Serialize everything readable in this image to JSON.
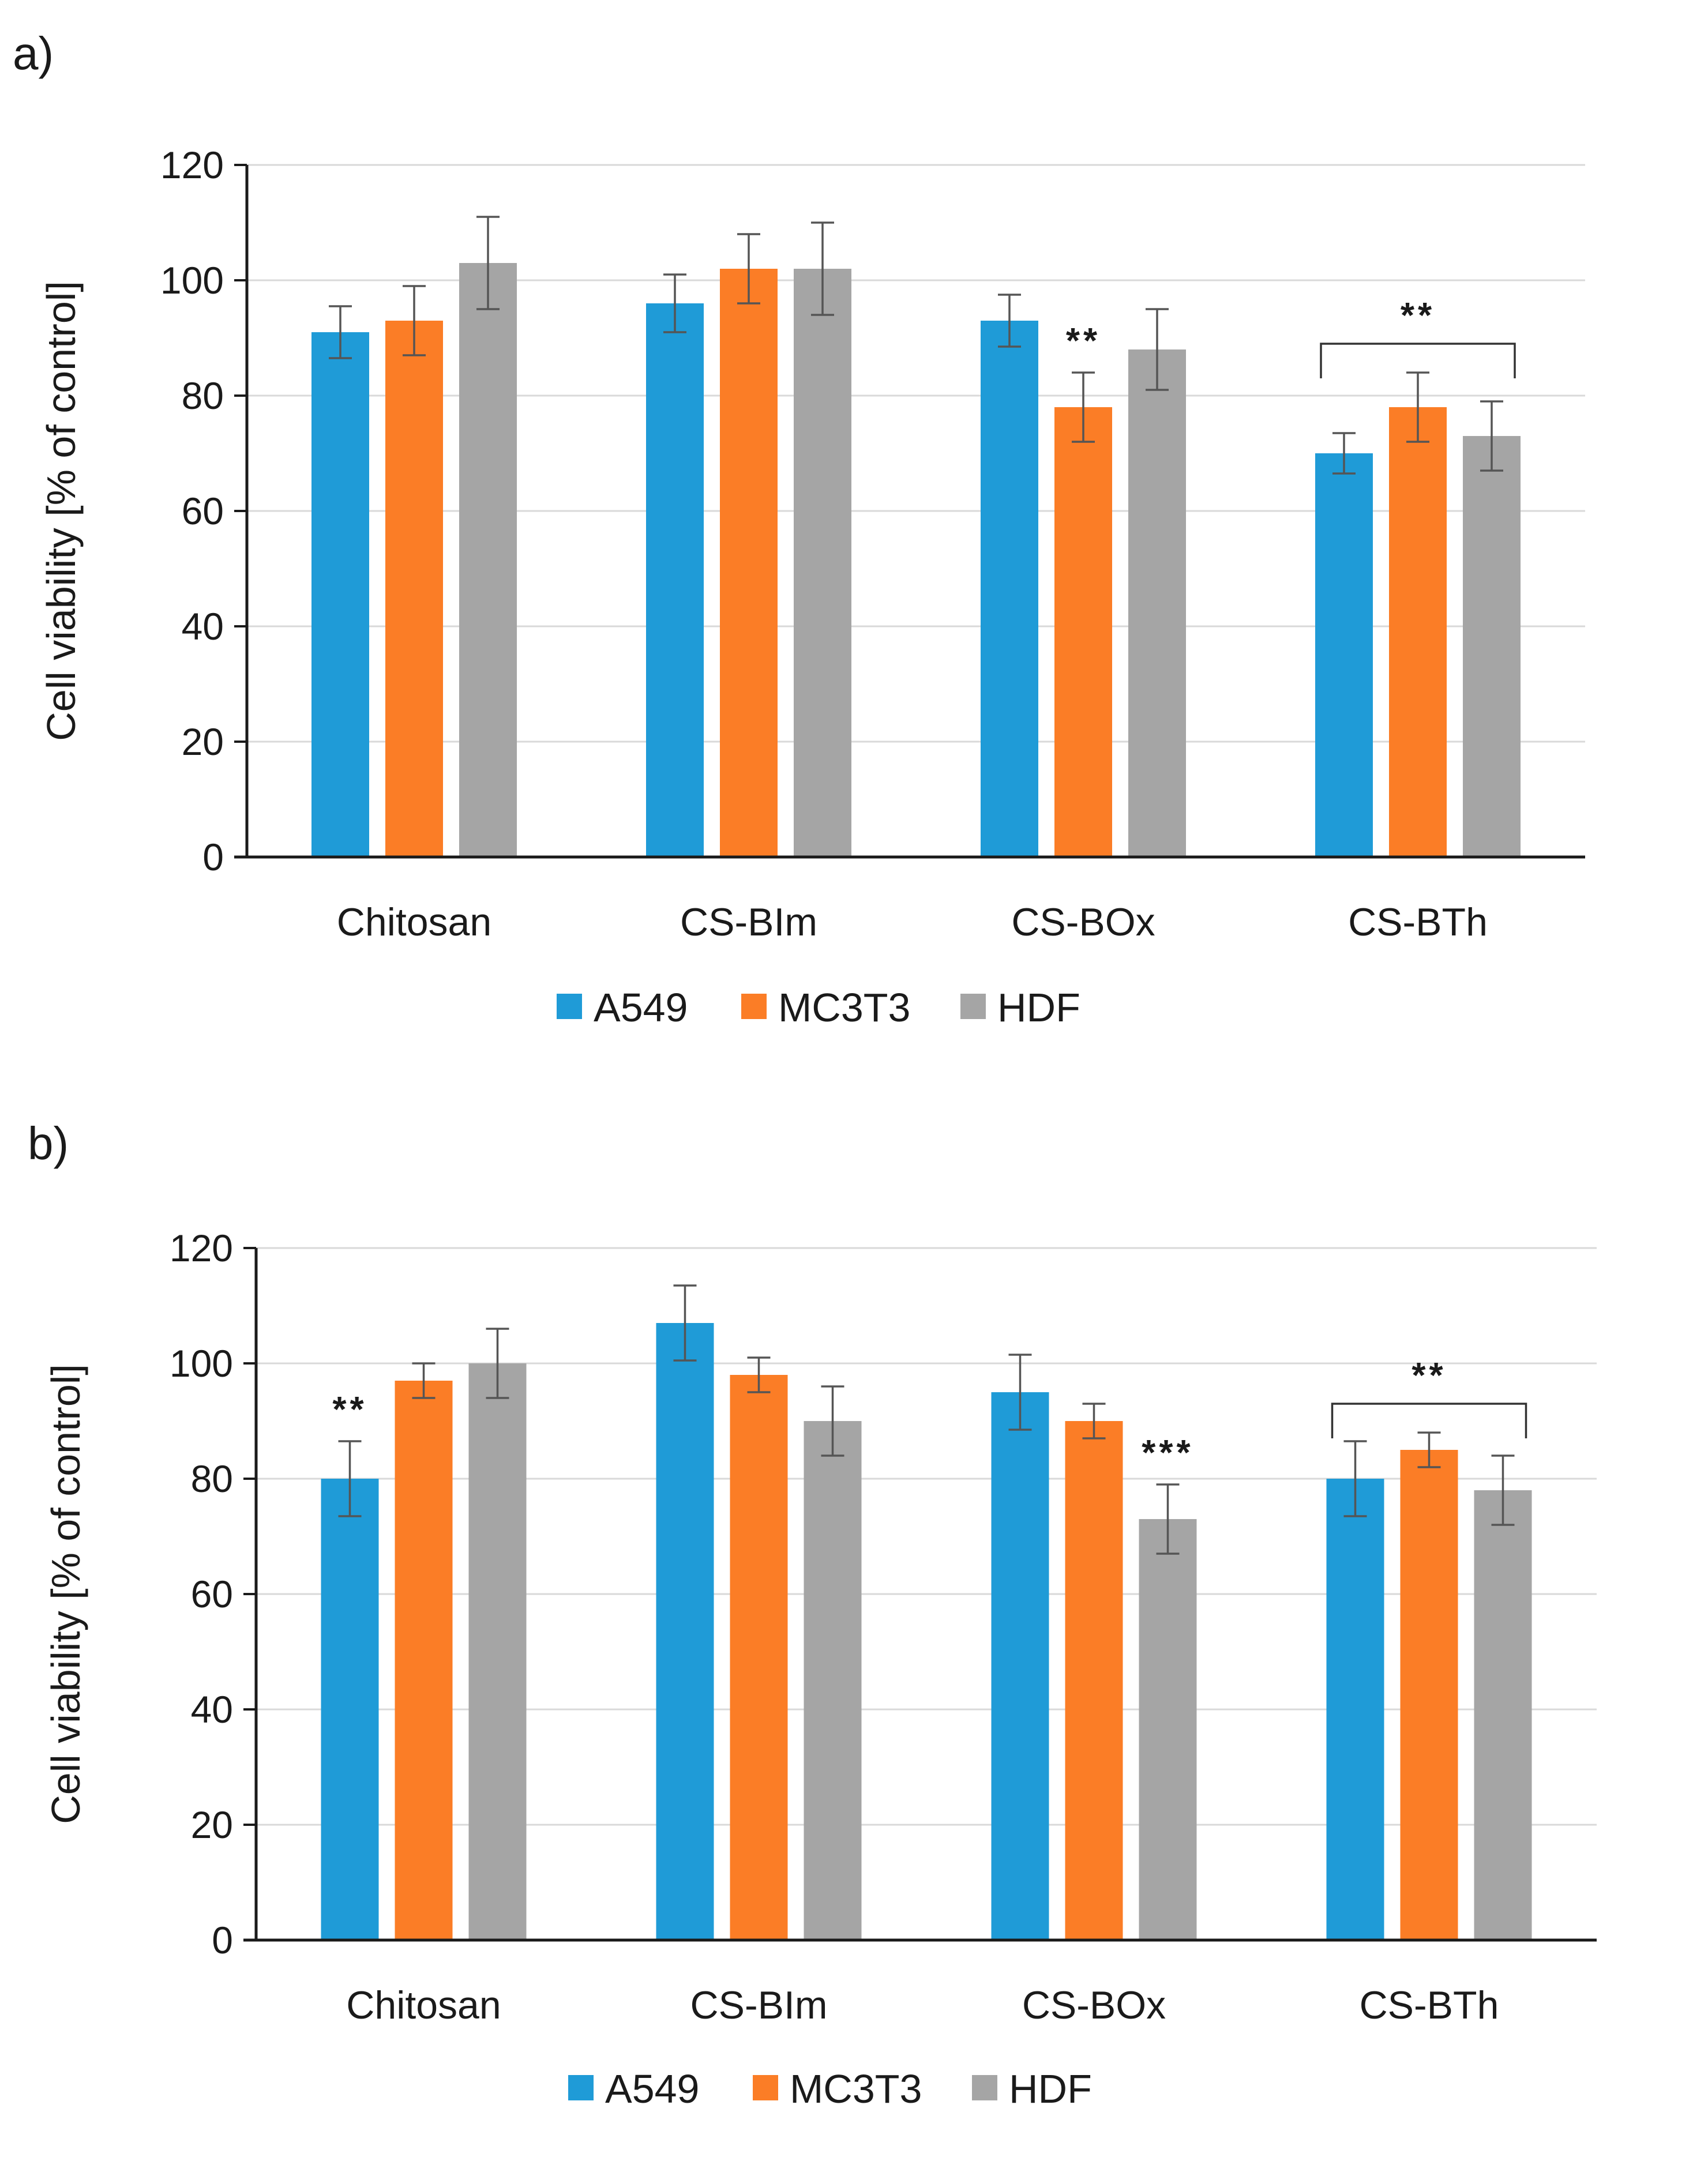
{
  "colors": {
    "A549": "#1f9bd7",
    "MC3T3": "#fb7d26",
    "HDF": "#a5a5a5",
    "axis": "#1a1a1a",
    "grid": "#d9d9d9",
    "errorbar": "#555555"
  },
  "chart_data": [
    {
      "type": "bar",
      "panel_label": "a)",
      "title": "",
      "xlabel": "",
      "ylabel": "Cell viability [% of control]",
      "ylim": [
        0,
        120
      ],
      "yticks": [
        0,
        20,
        40,
        60,
        80,
        100,
        120
      ],
      "grid": true,
      "legend_position": "bottom",
      "categories": [
        "Chitosan",
        "CS-BIm",
        "CS-BOx",
        "CS-BTh"
      ],
      "series": [
        {
          "name": "A549",
          "values": [
            91,
            96,
            93,
            70
          ],
          "errors": [
            4.5,
            5,
            4.5,
            3.5
          ]
        },
        {
          "name": "MC3T3",
          "values": [
            93,
            102,
            78,
            78
          ],
          "errors": [
            6,
            6,
            6,
            6
          ]
        },
        {
          "name": "HDF",
          "values": [
            103,
            102,
            88,
            73
          ],
          "errors": [
            8,
            8,
            7,
            6
          ]
        }
      ],
      "annotations": [
        {
          "text": "**",
          "category": 2,
          "series": 1
        },
        {
          "text": "**",
          "category": 3,
          "bracket": true
        }
      ]
    },
    {
      "type": "bar",
      "panel_label": "b)",
      "title": "",
      "xlabel": "",
      "ylabel": "Cell viability [% of control]",
      "ylim": [
        0,
        120
      ],
      "yticks": [
        0,
        20,
        40,
        60,
        80,
        100,
        120
      ],
      "grid": true,
      "legend_position": "bottom",
      "categories": [
        "Chitosan",
        "CS-BIm",
        "CS-BOx",
        "CS-BTh"
      ],
      "series": [
        {
          "name": "A549",
          "values": [
            80,
            107,
            95,
            80
          ],
          "errors": [
            6.5,
            6.5,
            6.5,
            6.5
          ]
        },
        {
          "name": "MC3T3",
          "values": [
            97,
            98,
            90,
            85
          ],
          "errors": [
            3,
            3,
            3,
            3
          ]
        },
        {
          "name": "HDF",
          "values": [
            100,
            90,
            73,
            78
          ],
          "errors": [
            6,
            6,
            6,
            6
          ]
        }
      ],
      "annotations": [
        {
          "text": "**",
          "category": 0,
          "series": 0
        },
        {
          "text": "***",
          "category": 2,
          "series": 2
        },
        {
          "text": "**",
          "category": 3,
          "bracket": true
        }
      ]
    }
  ]
}
